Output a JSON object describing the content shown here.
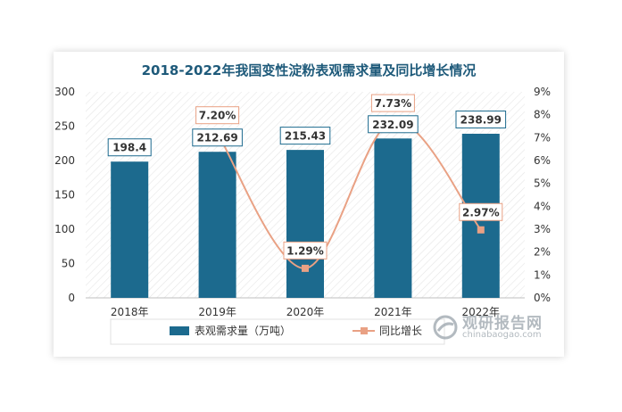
{
  "title": "2018-2022年我国变性淀粉表观需求量及同比增长情况",
  "chart_data": {
    "type": "bar",
    "categories": [
      "2018年",
      "2019年",
      "2020年",
      "2021年",
      "2022年"
    ],
    "series": [
      {
        "name": "表观需求量（万吨）",
        "kind": "bar",
        "axis": "left",
        "values": [
          198.4,
          212.69,
          215.43,
          232.09,
          238.99
        ],
        "labels": [
          "198.4",
          "212.69",
          "215.43",
          "232.09",
          "238.99"
        ]
      },
      {
        "name": "同比增长",
        "kind": "line",
        "axis": "right",
        "values": [
          null,
          7.2,
          1.29,
          7.73,
          2.97
        ],
        "labels": [
          "",
          "7.20%",
          "1.29%",
          "7.73%",
          "2.97%"
        ]
      }
    ],
    "left_axis": {
      "min": 0,
      "max": 300,
      "ticks": [
        "0",
        "50",
        "100",
        "150",
        "200",
        "250",
        "300"
      ]
    },
    "right_axis": {
      "min": 0,
      "max": 9,
      "ticks": [
        "0%",
        "1%",
        "2%",
        "3%",
        "4%",
        "5%",
        "6%",
        "7%",
        "8%",
        "9%"
      ]
    },
    "colors": {
      "bar": "#1c6a8e",
      "line": "#e9a184",
      "title": "#1e5a7a"
    },
    "legend_position": "bottom"
  },
  "watermark": {
    "main": "观研报告网",
    "sub": "chinabaogao.com"
  }
}
